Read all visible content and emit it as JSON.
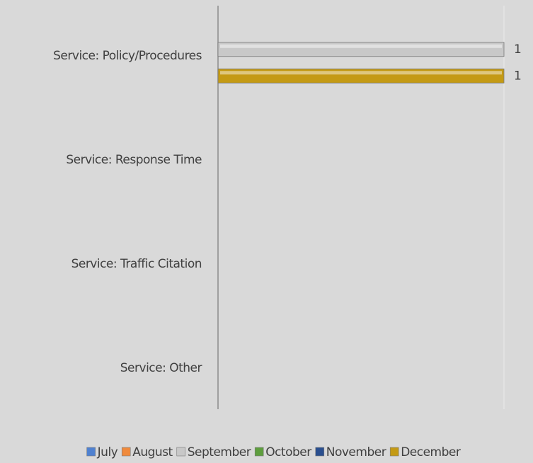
{
  "chart_data": {
    "type": "hbar",
    "categories": [
      "Service: Policy/Procedures",
      "Service: Response Time",
      "Service: Traffic Citation",
      "Service: Other"
    ],
    "series": [
      {
        "name": "July",
        "color": "#4f81d0",
        "values": [
          null,
          null,
          null,
          null
        ]
      },
      {
        "name": "August",
        "color": "#f08a3c",
        "values": [
          null,
          null,
          null,
          null
        ]
      },
      {
        "name": "September",
        "color": "#c8c8c8",
        "values": [
          1,
          null,
          null,
          null
        ]
      },
      {
        "name": "October",
        "color": "#5e9e3e",
        "values": [
          null,
          null,
          null,
          null
        ]
      },
      {
        "name": "November",
        "color": "#2a4f8f",
        "values": [
          null,
          null,
          null,
          null
        ]
      },
      {
        "name": "December",
        "color": "#c49a14",
        "values": [
          1,
          null,
          null,
          null
        ]
      }
    ],
    "xlim": [
      0,
      1
    ],
    "legend": "bottom"
  }
}
